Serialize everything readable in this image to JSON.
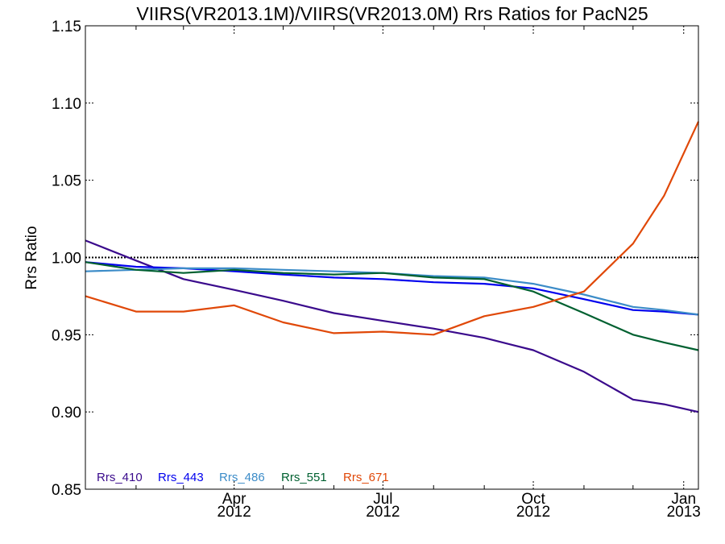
{
  "chart_data": {
    "type": "line",
    "title": "VIIRS(VR2013.1M)/VIIRS(VR2013.0M)  Rrs Ratios for PacN25",
    "xlabel": "",
    "ylabel": "Rrs Ratio",
    "xlim": [
      "2012-01-01",
      "2013-01-10"
    ],
    "ylim": [
      0.85,
      1.15
    ],
    "yticks": [
      0.85,
      0.9,
      0.95,
      1.0,
      1.05,
      1.1,
      1.15
    ],
    "ytick_labels": [
      "0.85",
      "0.90",
      "0.95",
      "1.00",
      "1.05",
      "1.10",
      "1.15"
    ],
    "xticks": [
      {
        "date": "2012-04-01",
        "line1": "Apr",
        "line2": "2012"
      },
      {
        "date": "2012-07-01",
        "line1": "Jul",
        "line2": "2012"
      },
      {
        "date": "2012-10-01",
        "line1": "Oct",
        "line2": "2012"
      },
      {
        "date": "2013-01-01",
        "line1": "Jan",
        "line2": "2013"
      }
    ],
    "x_minor_ticks": [
      "2012-02-01",
      "2012-03-01",
      "2012-05-01",
      "2012-06-01",
      "2012-08-01",
      "2012-09-01",
      "2012-11-01",
      "2012-12-01"
    ],
    "reference_line": {
      "y": 1.0,
      "style": "dotted",
      "color": "#000000"
    },
    "legend": "bottom-left",
    "x": [
      "2012-01-01",
      "2012-02-01",
      "2012-03-01",
      "2012-04-01",
      "2012-05-01",
      "2012-06-01",
      "2012-07-01",
      "2012-08-01",
      "2012-09-01",
      "2012-10-01",
      "2012-11-01",
      "2012-12-01",
      "2012-12-20",
      "2013-01-10"
    ],
    "series": [
      {
        "name": "Rrs_410",
        "color": "#3a0a8c",
        "values": [
          1.011,
          0.998,
          0.986,
          0.979,
          0.972,
          0.964,
          0.959,
          0.954,
          0.948,
          0.94,
          0.926,
          0.908,
          0.905,
          0.9
        ]
      },
      {
        "name": "Rrs_443",
        "color": "#0000ee",
        "values": [
          0.997,
          0.994,
          0.993,
          0.991,
          0.989,
          0.987,
          0.986,
          0.984,
          0.983,
          0.98,
          0.973,
          0.966,
          0.965,
          0.963
        ]
      },
      {
        "name": "Rrs_486",
        "color": "#3c8cc8",
        "values": [
          0.991,
          0.992,
          0.993,
          0.993,
          0.992,
          0.991,
          0.99,
          0.988,
          0.987,
          0.983,
          0.976,
          0.968,
          0.966,
          0.963
        ]
      },
      {
        "name": "Rrs_551",
        "color": "#006030",
        "values": [
          0.997,
          0.992,
          0.99,
          0.992,
          0.99,
          0.989,
          0.99,
          0.987,
          0.986,
          0.978,
          0.964,
          0.95,
          0.945,
          0.94
        ]
      },
      {
        "name": "Rrs_671",
        "color": "#e04808",
        "values": [
          0.975,
          0.965,
          0.965,
          0.969,
          0.958,
          0.951,
          0.952,
          0.95,
          0.962,
          0.968,
          0.978,
          1.009,
          1.04,
          1.088
        ]
      }
    ]
  }
}
